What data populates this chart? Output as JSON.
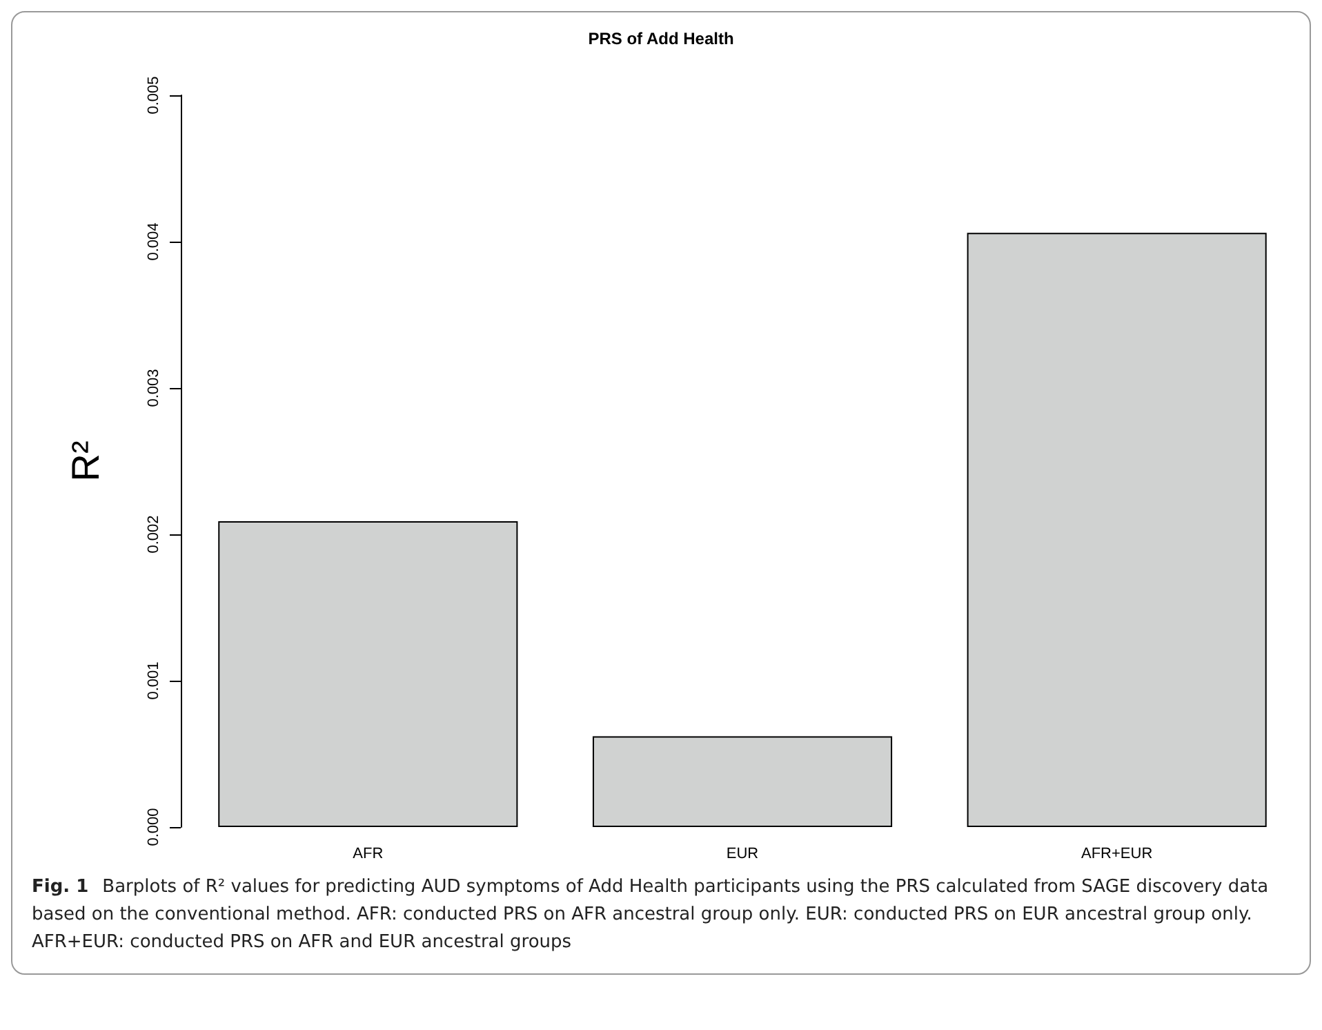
{
  "chart_data": {
    "type": "bar",
    "title": "PRS of Add Health",
    "ylabel": "R²",
    "categories": [
      "AFR",
      "EUR",
      "AFR+EUR"
    ],
    "values": [
      0.00209,
      0.00062,
      0.00406
    ],
    "color": "#d0d2d1",
    "ylim": [
      0,
      0.005
    ],
    "yticks": [
      {
        "value": 0,
        "label": "0.000"
      },
      0.001,
      0.002,
      0.003,
      0.004,
      0.005
    ],
    "grid": false,
    "annotations": [
      "Fig. 1",
      "Barplots of R² values for predicting AUD symptoms of Add Health participants using the PRS calculated from SAGE discovery data based on the conventional method. AFR: conducted PRS on AFR ancestral group only. EUR: conducted PRS on EUR ancestral group only. AFR+EUR: conducted PRS on AFR and EUR ancestral groups"
    ]
  }
}
